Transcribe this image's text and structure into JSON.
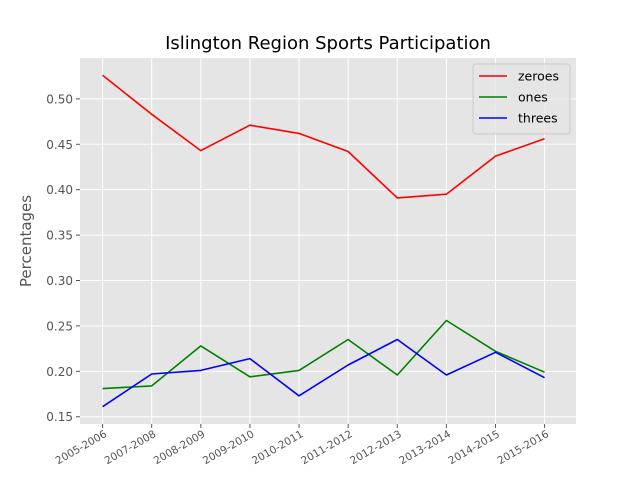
{
  "chart_data": {
    "type": "line",
    "title": "Islington Region Sports Participation",
    "xlabel": "",
    "ylabel": "Percentages",
    "categories": [
      "2005-2006",
      "2007-2008",
      "2008-2009",
      "2009-2010",
      "2010-2011",
      "2011-2012",
      "2012-2013",
      "2013-2014",
      "2014-2015",
      "2015-2016"
    ],
    "series": [
      {
        "name": "zeroes",
        "color": "#ff0000",
        "values": [
          0.526,
          0.483,
          0.443,
          0.471,
          0.462,
          0.442,
          0.391,
          0.395,
          0.437,
          0.456
        ]
      },
      {
        "name": "ones",
        "color": "#008000",
        "values": [
          0.181,
          0.184,
          0.228,
          0.194,
          0.201,
          0.235,
          0.196,
          0.256,
          0.222,
          0.199
        ]
      },
      {
        "name": "threes",
        "color": "#0000ff",
        "values": [
          0.161,
          0.197,
          0.201,
          0.214,
          0.173,
          0.207,
          0.235,
          0.196,
          0.221,
          0.193
        ]
      }
    ],
    "yticks": [
      "0.15",
      "0.20",
      "0.25",
      "0.30",
      "0.35",
      "0.40",
      "0.45",
      "0.50"
    ],
    "ylim": [
      0.142,
      0.545
    ],
    "grid": true,
    "legend_position": "top-right",
    "background_color": "#e5e5e5",
    "grid_color": "#ffffff"
  }
}
